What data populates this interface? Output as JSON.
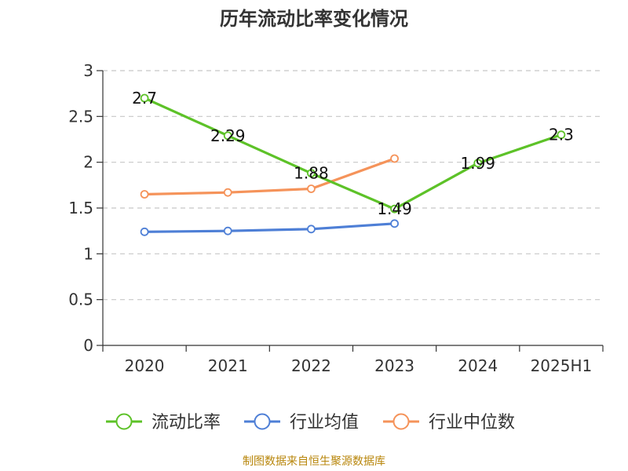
{
  "chart_data": {
    "type": "line",
    "title": "历年流动比率变化情况",
    "categories": [
      "2020",
      "2021",
      "2022",
      "2023",
      "2024",
      "2025H1"
    ],
    "yticks": [
      "0",
      "0.5",
      "1",
      "1.5",
      "2",
      "2.5",
      "3"
    ],
    "ylim": [
      0,
      3
    ],
    "grid": true,
    "legend_position": "bottom",
    "series": [
      {
        "name": "流动比率",
        "color": "#5dc228",
        "values": [
          2.7,
          2.29,
          1.88,
          1.49,
          1.99,
          2.3
        ],
        "labels": [
          "2.7",
          "2.29",
          "1.88",
          "1.49",
          "1.99",
          "2.3"
        ],
        "show_labels": true
      },
      {
        "name": "行业均值",
        "color": "#4e7fd6",
        "values": [
          1.24,
          1.25,
          1.27,
          1.33,
          null,
          null
        ],
        "show_labels": false
      },
      {
        "name": "行业中位数",
        "color": "#f5935a",
        "values": [
          1.65,
          1.67,
          1.71,
          2.04,
          null,
          null
        ],
        "show_labels": false
      }
    ]
  },
  "source_note": "制图数据来自恒生聚源数据库"
}
